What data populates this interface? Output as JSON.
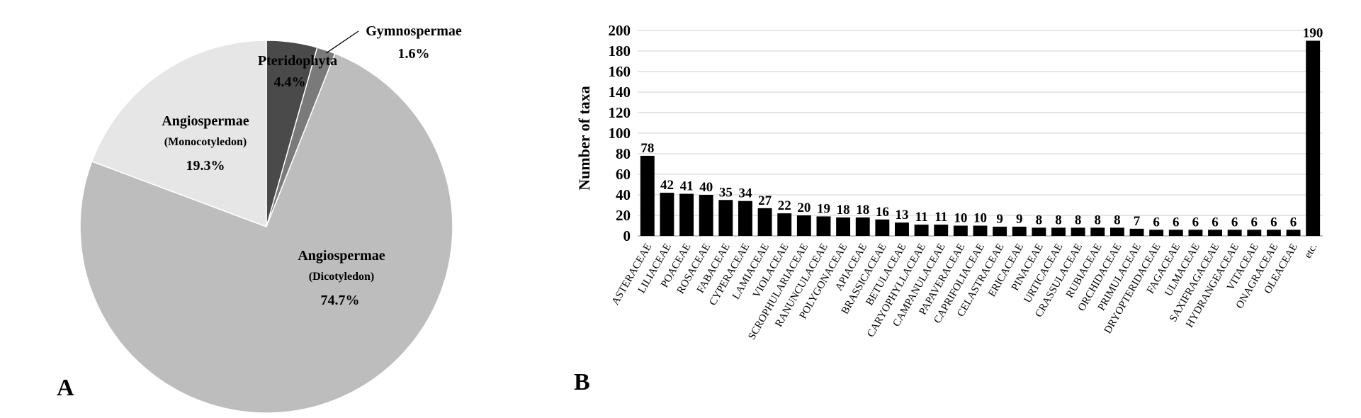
{
  "chart_data": [
    {
      "type": "pie",
      "panel_label": "A",
      "slices": [
        {
          "name": "Pteridophyta",
          "value": 4.4,
          "label": "4.4%",
          "color": "#4a4a4a"
        },
        {
          "name": "Gymnospermae",
          "value": 1.6,
          "label": "1.6%",
          "color": "#7a7a7a"
        },
        {
          "name": "Angiospermae",
          "sub": "(Dicotyledon)",
          "value": 74.7,
          "label": "74.7%",
          "color": "#bdbdbd"
        },
        {
          "name": "Angiospermae",
          "sub": "(Monocotyledon)",
          "value": 19.3,
          "label": "19.3%",
          "color": "#e6e6e6"
        }
      ]
    },
    {
      "type": "bar",
      "panel_label": "B",
      "ylabel": "Number of taxa",
      "ylim": [
        0,
        200
      ],
      "yticks": [
        0,
        20,
        40,
        60,
        80,
        100,
        120,
        140,
        160,
        180,
        200
      ],
      "grid": true,
      "bar_color": "#000000",
      "categories": [
        "ASTERACEAE",
        "LILIACEAE",
        "POACEAE",
        "ROSACEAE",
        "FABACEAE",
        "CYPERACEAE",
        "LAMIACEAE",
        "VIOLACEAE",
        "SCROPHULARIACEAE",
        "RANUNCULACEAE",
        "POLYGONACEAE",
        "APIACEAE",
        "BRASSICACEAE",
        "BETULACEAE",
        "CARYOPHYLLACEAE",
        "CAMPANULACEAE",
        "PAPAVERACEAE",
        "CAPRIFOLIACEAE",
        "CELASTRACEAE",
        "ERICACEAE",
        "PINACEAE",
        "URTICACEAE",
        "CRASSULACEAE",
        "RUBIACEAE",
        "ORCHIDACEAE",
        "PRIMULACEAE",
        "DRYOPTERIDACEAE",
        "FAGACEAE",
        "ULMACEAE",
        "SAXIFRAGACEAE",
        "HYDRANGEACEAE",
        "VITACEAE",
        "ONAGRACEAE",
        "OLEACEAE",
        "etc."
      ],
      "values": [
        78,
        42,
        41,
        40,
        35,
        34,
        27,
        22,
        20,
        19,
        18,
        18,
        16,
        13,
        11,
        11,
        10,
        10,
        9,
        9,
        8,
        8,
        8,
        8,
        8,
        7,
        6,
        6,
        6,
        6,
        6,
        6,
        6,
        6,
        190
      ]
    }
  ]
}
